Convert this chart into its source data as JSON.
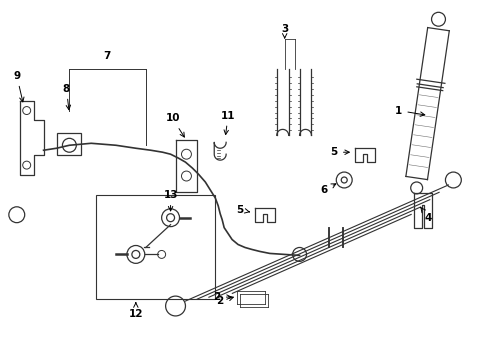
{
  "bg_color": "#ffffff",
  "line_color": "#333333",
  "fig_width": 4.9,
  "fig_height": 3.6,
  "dpi": 100,
  "xlim": [
    0,
    490
  ],
  "ylim": [
    0,
    360
  ]
}
